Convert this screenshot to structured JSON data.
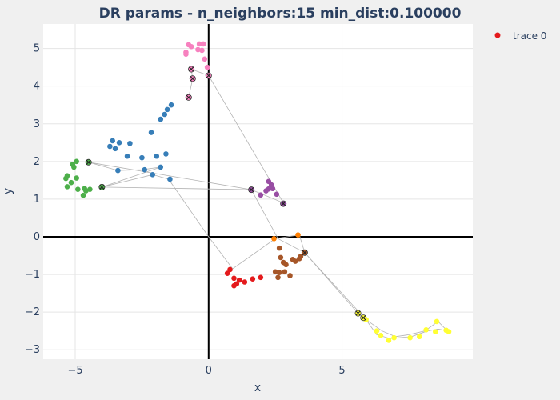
{
  "chart_data": {
    "type": "scatter",
    "title": "DR params - n_neighbors:15 min_dist:0.100000",
    "xlabel": "x",
    "ylabel": "y",
    "xlim": [
      -6.2,
      9.9
    ],
    "ylim": [
      -3.25,
      5.65
    ],
    "x_ticks": [
      -5,
      0,
      5
    ],
    "y_ticks": [
      -3,
      -2,
      -1,
      0,
      1,
      2,
      3,
      4,
      5
    ],
    "grid": true,
    "legend": {
      "position": "top-right",
      "entries": [
        {
          "label": "trace 0",
          "color": "#e41a1c"
        }
      ]
    },
    "path": [
      [
        -0.75,
        3.7
      ],
      [
        -0.6,
        4.2
      ],
      [
        -0.65,
        4.45
      ],
      [
        0,
        4.28
      ],
      [
        2.8,
        0.9
      ],
      [
        1.6,
        1.25
      ],
      [
        -4.0,
        1.32
      ],
      [
        -2.1,
        1.65
      ],
      [
        -1.5,
        1.53
      ],
      [
        0,
        0
      ],
      [
        0.9,
        -0.85
      ],
      [
        2.5,
        -0.05
      ],
      [
        3.4,
        0.05
      ],
      [
        3.6,
        -0.42
      ],
      [
        5.6,
        -2.03
      ],
      [
        5.8,
        -2.15
      ],
      [
        6.5,
        -2.5
      ],
      [
        7.0,
        -2.65
      ],
      [
        7.5,
        -2.6
      ],
      [
        8.1,
        -2.5
      ],
      [
        8.6,
        -2.25
      ],
      [
        8.95,
        -2.5
      ],
      [
        8.6,
        -2.45
      ],
      [
        8.2,
        -2.5
      ],
      [
        7.6,
        -2.65
      ],
      [
        6.8,
        -2.7
      ],
      [
        6.3,
        -2.6
      ],
      [
        5.9,
        -2.2
      ],
      [
        3.6,
        -0.42
      ],
      [
        2.6,
        -0.05
      ],
      [
        1.6,
        1.25
      ],
      [
        -4.5,
        1.98
      ],
      [
        -3.4,
        1.76
      ],
      [
        -2.5,
        1.78
      ],
      [
        -1.8,
        1.85
      ],
      [
        -4.0,
        1.32
      ]
    ],
    "series": [
      {
        "color": "#e41a1c",
        "points": [
          [
            0.8,
            -0.87
          ],
          [
            0.7,
            -0.97
          ],
          [
            0.95,
            -1.1
          ],
          [
            1.15,
            -1.15
          ],
          [
            1.35,
            -1.2
          ],
          [
            1.05,
            -1.25
          ],
          [
            0.95,
            -1.3
          ],
          [
            1.65,
            -1.12
          ],
          [
            1.95,
            -1.08
          ]
        ]
      },
      {
        "color": "#377eb8",
        "points": [
          [
            -1.4,
            3.5
          ],
          [
            -1.55,
            3.38
          ],
          [
            -1.65,
            3.25
          ],
          [
            -1.8,
            3.12
          ],
          [
            -2.15,
            2.77
          ],
          [
            -2.95,
            2.48
          ],
          [
            -3.35,
            2.5
          ],
          [
            -3.6,
            2.55
          ],
          [
            -3.7,
            2.4
          ],
          [
            -3.5,
            2.34
          ],
          [
            -3.05,
            2.14
          ],
          [
            -2.5,
            2.1
          ],
          [
            -1.95,
            2.14
          ],
          [
            -1.6,
            2.2
          ],
          [
            -3.4,
            1.76
          ],
          [
            -2.4,
            1.78
          ],
          [
            -1.8,
            1.85
          ],
          [
            -2.1,
            1.65
          ],
          [
            -1.45,
            1.53
          ]
        ]
      },
      {
        "color": "#4daf4a",
        "points": [
          [
            -4.95,
            2.0
          ],
          [
            -5.1,
            1.92
          ],
          [
            -5.05,
            1.85
          ],
          [
            -5.3,
            1.62
          ],
          [
            -5.35,
            1.55
          ],
          [
            -4.95,
            1.56
          ],
          [
            -5.15,
            1.44
          ],
          [
            -5.3,
            1.33
          ],
          [
            -4.9,
            1.26
          ],
          [
            -4.65,
            1.28
          ],
          [
            -4.45,
            1.26
          ],
          [
            -4.6,
            1.22
          ],
          [
            -4.7,
            1.1
          ]
        ]
      },
      {
        "color": "#984ea3",
        "points": [
          [
            2.25,
            1.47
          ],
          [
            2.35,
            1.38
          ],
          [
            2.4,
            1.28
          ],
          [
            2.25,
            1.27
          ],
          [
            2.15,
            1.22
          ],
          [
            2.55,
            1.13
          ],
          [
            1.95,
            1.11
          ]
        ]
      },
      {
        "color": "#ff7f00",
        "points": [
          [
            2.45,
            -0.05
          ],
          [
            3.35,
            0.05
          ]
        ]
      },
      {
        "color": "#a65628",
        "points": [
          [
            2.65,
            -0.3
          ],
          [
            2.7,
            -0.55
          ],
          [
            2.8,
            -0.68
          ],
          [
            2.9,
            -0.74
          ],
          [
            3.15,
            -0.6
          ],
          [
            3.25,
            -0.65
          ],
          [
            3.4,
            -0.58
          ],
          [
            3.45,
            -0.52
          ],
          [
            2.5,
            -0.93
          ],
          [
            2.65,
            -0.95
          ],
          [
            2.85,
            -0.93
          ],
          [
            3.05,
            -1.03
          ],
          [
            2.6,
            -1.08
          ]
        ]
      },
      {
        "color": "#f781bf",
        "points": [
          [
            -0.75,
            5.1
          ],
          [
            -0.65,
            5.05
          ],
          [
            -0.4,
            4.97
          ],
          [
            -0.35,
            5.12
          ],
          [
            -0.2,
            5.12
          ],
          [
            -0.25,
            4.95
          ],
          [
            -0.85,
            4.9
          ],
          [
            -0.85,
            4.85
          ],
          [
            -0.15,
            4.72
          ],
          [
            -0.05,
            4.5
          ]
        ]
      },
      {
        "color": "#ffff33",
        "points": [
          [
            5.9,
            -2.2
          ],
          [
            6.3,
            -2.5
          ],
          [
            6.45,
            -2.62
          ],
          [
            6.75,
            -2.75
          ],
          [
            6.95,
            -2.68
          ],
          [
            7.55,
            -2.68
          ],
          [
            7.9,
            -2.65
          ],
          [
            8.15,
            -2.47
          ],
          [
            8.5,
            -2.52
          ],
          [
            8.55,
            -2.25
          ],
          [
            8.9,
            -2.48
          ],
          [
            9.0,
            -2.52
          ]
        ]
      }
    ],
    "x_markers": [
      {
        "color": "#f781bf",
        "points": [
          [
            -0.65,
            4.45
          ],
          [
            -0.6,
            4.2
          ],
          [
            0,
            4.28
          ],
          [
            -0.75,
            3.7
          ]
        ]
      },
      {
        "color": "#4daf4a",
        "points": [
          [
            -4.5,
            1.98
          ],
          [
            -4.0,
            1.32
          ]
        ]
      },
      {
        "color": "#984ea3",
        "points": [
          [
            1.6,
            1.25
          ],
          [
            2.8,
            0.88
          ]
        ]
      },
      {
        "color": "#a65628",
        "points": [
          [
            3.6,
            -0.42
          ]
        ]
      },
      {
        "color": "#ffff33",
        "points": [
          [
            5.6,
            -2.03
          ],
          [
            5.8,
            -2.15
          ]
        ]
      }
    ]
  }
}
